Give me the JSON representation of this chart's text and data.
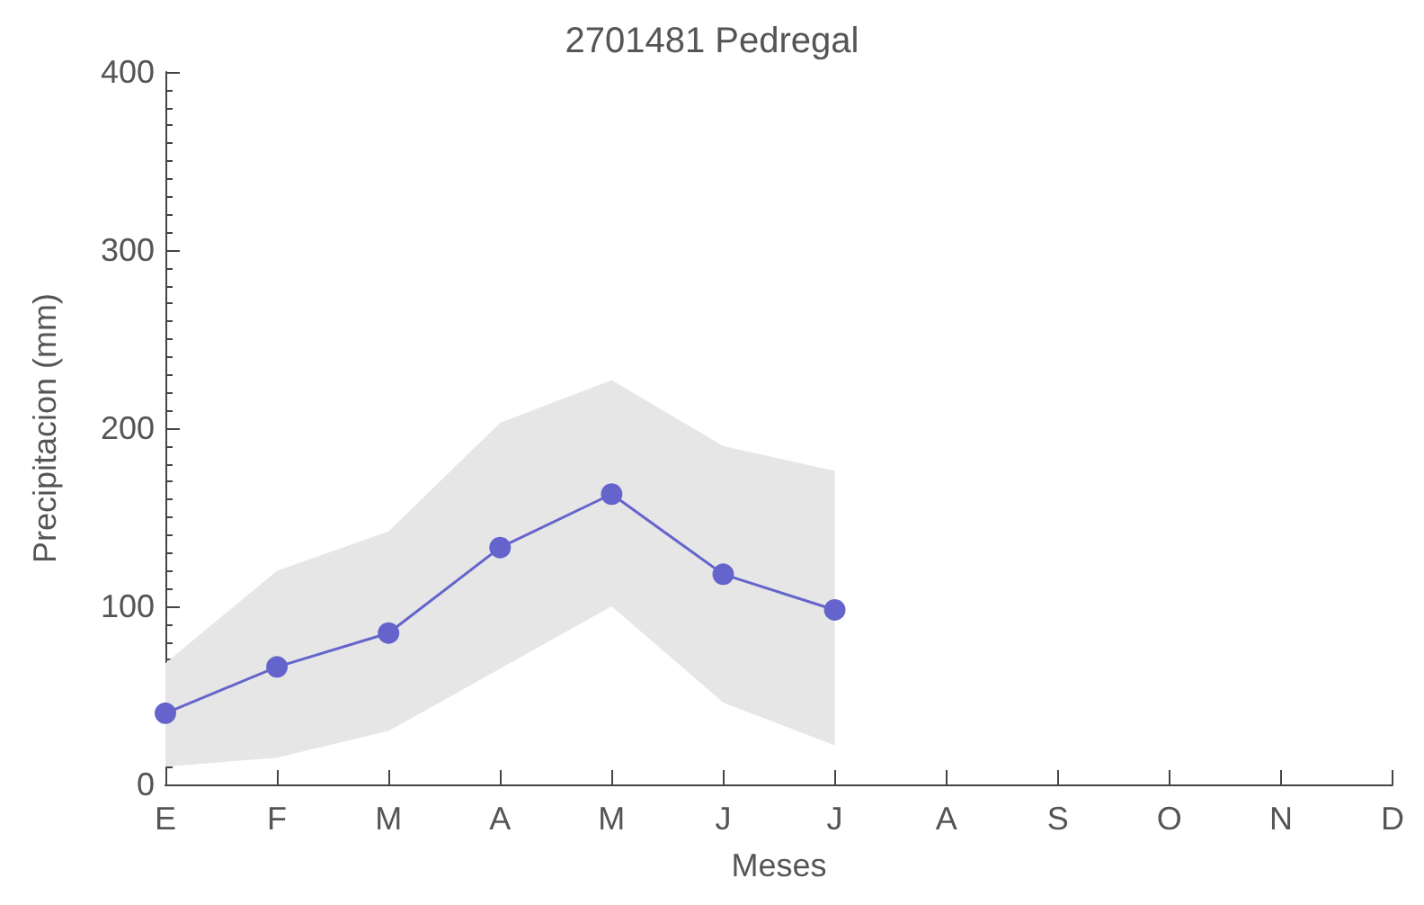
{
  "chart_data": {
    "type": "line",
    "title": "2701481 Pedregal",
    "xlabel": "Meses",
    "ylabel": "Precipitacion (mm)",
    "categories": [
      "E",
      "F",
      "M",
      "A",
      "M",
      "J",
      "J",
      "A",
      "S",
      "O",
      "N",
      "D"
    ],
    "series": [
      {
        "color": "#6464cc",
        "values": [
          40,
          66,
          85,
          133,
          163,
          118,
          98,
          null,
          null,
          null,
          null,
          null
        ],
        "lower": [
          10,
          15,
          30,
          65,
          100,
          46,
          22,
          null,
          null,
          null,
          null,
          null
        ],
        "upper": [
          68,
          120,
          142,
          203,
          227,
          190,
          176,
          null,
          null,
          null,
          null,
          null
        ]
      }
    ],
    "ylim": [
      0,
      400
    ],
    "yticks": [
      0,
      100,
      200,
      300,
      400
    ],
    "grid": false,
    "marker": "circle",
    "line_style": "solid"
  }
}
